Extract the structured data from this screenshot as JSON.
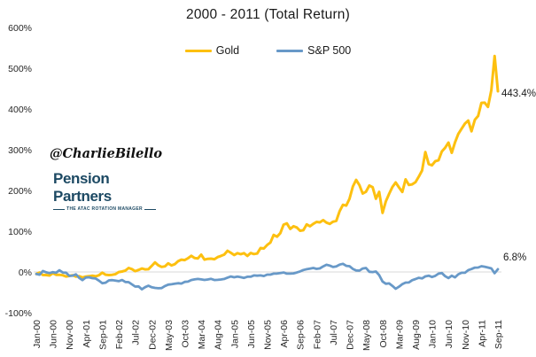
{
  "title": "2000 - 2011 (Total Return)",
  "watermark": {
    "twitter_handle": "@CharlieBilello",
    "company": "Pension Partners",
    "company_tagline": "THE ATAC ROTATION MANAGER"
  },
  "colors": {
    "gold": "#FDC010",
    "sp500": "#6899C8",
    "gridline": "#D9D9D9",
    "tick_text": "#262626",
    "logo_blue": "#1C4963"
  },
  "chart_data": {
    "type": "line",
    "title": "2000 - 2011 (Total Return)",
    "x_frequency": "monthly",
    "x_range": [
      "Jan-00",
      "Sep-11"
    ],
    "x_tick_interval_months": 5,
    "x_tick_labels": [
      "Jan-00",
      "Jun-00",
      "Nov-00",
      "Apr-01",
      "Sep-01",
      "Feb-02",
      "Jul-02",
      "Dec-02",
      "May-03",
      "Oct-03",
      "Mar-04",
      "Aug-04",
      "Jan-05",
      "Jun-05",
      "Nov-05",
      "Apr-06",
      "Sep-06",
      "Feb-07",
      "Jul-07",
      "Dec-07",
      "May-08",
      "Oct-08",
      "Mar-09",
      "Aug-09",
      "Jan-10",
      "Jun-10",
      "Nov-10",
      "Apr-11",
      "Sep-11"
    ],
    "y_unit": "%",
    "ylim": [
      -100,
      600
    ],
    "y_ticks": [
      {
        "label": "600%",
        "value": 600
      },
      {
        "label": "500%",
        "value": 500
      },
      {
        "label": "400%",
        "value": 400
      },
      {
        "label": "300%",
        "value": 300
      },
      {
        "label": "200%",
        "value": 200
      },
      {
        "label": "100%",
        "value": 100
      },
      {
        "label": "0%",
        "value": 0
      },
      {
        "label": "-100%",
        "value": -100
      }
    ],
    "grid": "horizontal line at 0% only",
    "legend_position": "top-center",
    "series": [
      {
        "name": "Gold",
        "color": "#FDC010",
        "end_label": "443.4%",
        "values": [
          -5.0,
          -1.3,
          -7.4,
          -7.7,
          -8.7,
          -3.0,
          -7.0,
          -7.0,
          -8.1,
          -11.1,
          -9.7,
          -8.1,
          -11.4,
          -10.4,
          -13.4,
          -11.4,
          -10.4,
          -9.1,
          -10.7,
          -8.1,
          -1.7,
          -6.7,
          -7.7,
          -7.0,
          -5.4,
          -0.3,
          1.0,
          3.4,
          9.7,
          7.0,
          2.0,
          5.0,
          8.4,
          6.4,
          6.7,
          15.1,
          23.5,
          16.4,
          12.4,
          13.8,
          21.1,
          16.1,
          19.1,
          26.2,
          30.2,
          29.2,
          33.6,
          39.6,
          34.2,
          33.2,
          42.3,
          30.2,
          32.2,
          32.6,
          31.2,
          36.6,
          39.3,
          42.6,
          52.0,
          47.0,
          41.6,
          46.0,
          43.6,
          46.0,
          39.3,
          46.6,
          44.0,
          45.3,
          58.7,
          57.7,
          66.1,
          72.1,
          90.9,
          86.6,
          95.3,
          116.1,
          119.1,
          105.7,
          112.1,
          109.1,
          101.0,
          102.3,
          116.8,
          112.1,
          118.1,
          122.8,
          121.8,
          127.2,
          121.1,
          118.1,
          123.2,
          125.5,
          149.3,
          164.8,
          162.8,
          179.5,
          209.7,
          225.8,
          213.1,
          192.3,
          197.0,
          212.1,
          208.1,
          179.5,
          196.6,
          145.0,
          173.2,
          191.6,
          208.4,
          219.5,
          207.4,
          196.3,
          227.2,
          213.4,
          215.1,
          220.5,
          233.9,
          249.0,
          294.3,
          264.8,
          261.7,
          271.8,
          274.2,
          295.6,
          305.0,
          317.4,
          292.3,
          318.1,
          338.6,
          351.7,
          364.1,
          371.5,
          345.3,
          373.5,
          382.9,
          415.1,
          415.4,
          405.0,
          446.3,
          530.0,
          443.4
        ]
      },
      {
        "name": "S&P 500",
        "color": "#6899C8",
        "end_label": "6.8%",
        "values": [
          -5.0,
          -6.8,
          2.3,
          -0.8,
          -2.8,
          -0.4,
          -2.0,
          4.1,
          -1.4,
          -1.8,
          -9.5,
          -9.1,
          -5.9,
          -14.5,
          -19.9,
          -13.6,
          -13.1,
          -15.2,
          -16.0,
          -21.3,
          -27.6,
          -26.3,
          -20.6,
          -19.9,
          -21.1,
          -22.6,
          -19.7,
          -24.5,
          -25.1,
          -30.4,
          -35.9,
          -35.4,
          -42.5,
          -37.4,
          -33.7,
          -37.6,
          -39.2,
          -40.1,
          -39.6,
          -34.6,
          -31.1,
          -30.3,
          -29.0,
          -27.6,
          -28.4,
          -24.4,
          -23.7,
          -19.7,
          -18.2,
          -17.1,
          -18.3,
          -19.6,
          -18.5,
          -16.9,
          -19.7,
          -19.4,
          -18.5,
          -17.2,
          -13.9,
          -11.0,
          -13.1,
          -11.3,
          -12.9,
          -14.5,
          -11.8,
          -11.7,
          -8.4,
          -9.2,
          -8.5,
          -10.0,
          -6.6,
          -6.6,
          -4.1,
          -3.9,
          -2.7,
          -1.4,
          -4.2,
          -4.1,
          -3.5,
          -1.2,
          1.4,
          4.7,
          6.7,
          8.2,
          9.8,
          7.6,
          8.8,
          13.7,
          17.6,
          15.7,
          12.1,
          13.8,
          18.0,
          19.9,
          14.9,
          14.1,
          7.3,
          3.8,
          3.3,
          8.4,
          9.8,
          0.5,
          -0.3,
          1.1,
          -7.9,
          -23.4,
          -28.9,
          -28.1,
          -34.2,
          -41.2,
          -36.0,
          -29.9,
          -26.0,
          -25.8,
          -20.2,
          -17.4,
          -14.3,
          -15.9,
          -10.8,
          -9.1,
          -12.4,
          -9.6,
          -4.2,
          -2.7,
          -10.5,
          -15.1,
          -9.2,
          -13.3,
          -5.6,
          -2.0,
          -2.0,
          4.6,
          7.1,
          10.7,
          10.8,
          14.1,
          12.8,
          10.9,
          8.6,
          -3.0,
          6.8
        ]
      }
    ]
  }
}
